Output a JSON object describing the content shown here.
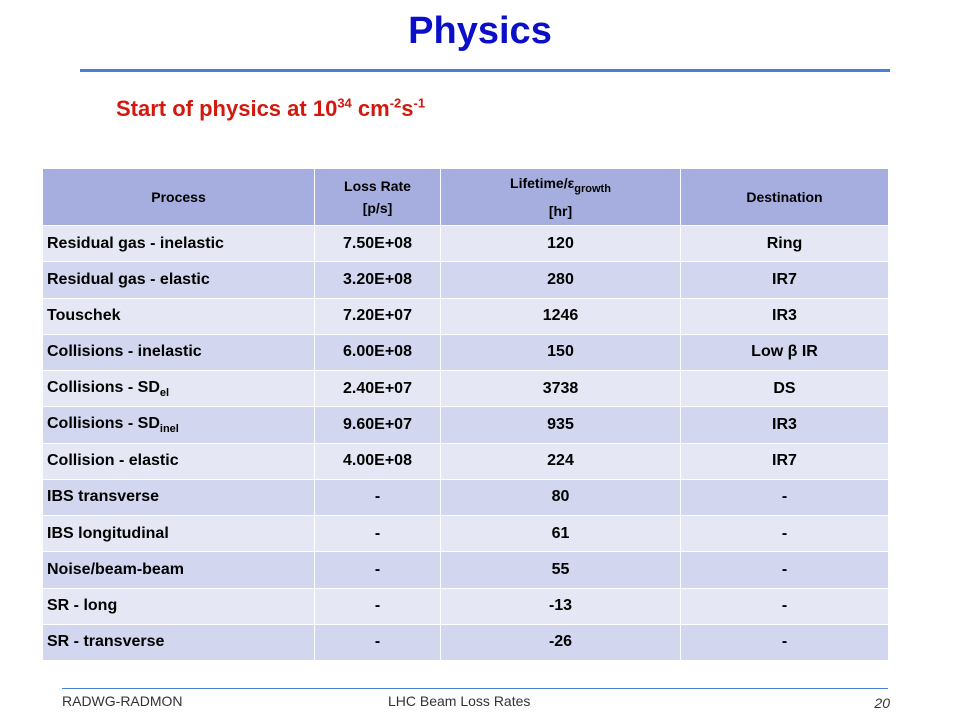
{
  "title": "Physics",
  "subtitle": {
    "text": "Start of physics at 10",
    "exponent": "34",
    "unit": " cm",
    "unit_exp_1": "-2",
    "unit_s": "s",
    "unit_exp_2": "-1"
  },
  "table": {
    "headers": {
      "process": "Process",
      "loss_rate_line1": "Loss Rate",
      "loss_rate_line2": "[p/s]",
      "lifetime_line1": "Lifetime/ε",
      "lifetime_sub": "growth",
      "lifetime_line2": "[hr]",
      "destination": "Destination"
    },
    "rows": [
      {
        "process": "Residual gas - inelastic",
        "process_sub": "",
        "loss_rate": "7.50E+08",
        "lifetime": "120",
        "destination": "Ring"
      },
      {
        "process": "Residual gas - elastic",
        "process_sub": "",
        "loss_rate": "3.20E+08",
        "lifetime": "280",
        "destination": "IR7"
      },
      {
        "process": "Touschek",
        "process_sub": "",
        "loss_rate": "7.20E+07",
        "lifetime": "1246",
        "destination": "IR3"
      },
      {
        "process": "Collisions - inelastic",
        "process_sub": "",
        "loss_rate": "6.00E+08",
        "lifetime": "150",
        "destination": "Low β IR"
      },
      {
        "process": "Collisions - SD",
        "process_sub": "el",
        "loss_rate": "2.40E+07",
        "lifetime": "3738",
        "destination": "DS"
      },
      {
        "process": "Collisions - SD",
        "process_sub": "inel",
        "loss_rate": "9.60E+07",
        "lifetime": "935",
        "destination": "IR3"
      },
      {
        "process": "Collision - elastic",
        "process_sub": "",
        "loss_rate": "4.00E+08",
        "lifetime": "224",
        "destination": "IR7"
      },
      {
        "process": "IBS transverse",
        "process_sub": "",
        "loss_rate": "-",
        "lifetime": "80",
        "destination": "-"
      },
      {
        "process": "IBS longitudinal",
        "process_sub": "",
        "loss_rate": "-",
        "lifetime": "61",
        "destination": "-"
      },
      {
        "process": "Noise/beam-beam",
        "process_sub": "",
        "loss_rate": "-",
        "lifetime": "55",
        "destination": "-"
      },
      {
        "process": "SR - long",
        "process_sub": "",
        "loss_rate": "-",
        "lifetime": "-13",
        "destination": "-"
      },
      {
        "process": "SR - transverse",
        "process_sub": "",
        "loss_rate": "-",
        "lifetime": "-26",
        "destination": "-"
      }
    ]
  },
  "footer": {
    "left": "RADWG-RADMON",
    "center": "LHC Beam Loss Rates",
    "page": "20"
  },
  "colors": {
    "title": "#0b10c8",
    "subtitle": "#d3180e",
    "header_bg": "#a5aede",
    "row_light": "#e5e7f5",
    "row_dark": "#d2d6ee",
    "rule": "#4a7fd8"
  }
}
